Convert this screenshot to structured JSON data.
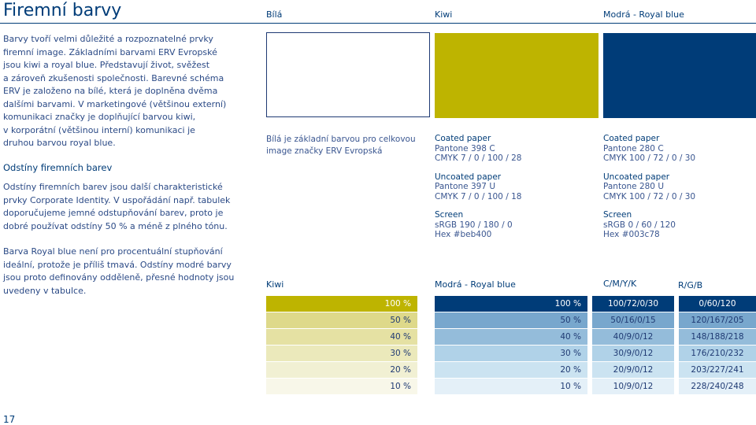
{
  "page": {
    "title": "Firemní barvy",
    "page_number": "17"
  },
  "intro": {
    "lines": [
      "Barvy tvoří velmi důležité a rozpoznatelné prvky",
      "firemní image. Základními barvami ERV Evropské",
      "jsou kiwi a royal blue. Představují život, svěžest",
      "a zároveň zkušenosti společnosti. Barevné schéma",
      "ERV je založeno na bílé, která je doplněna dvěma",
      "dalšími barvami. V marketingové (většinou externí)",
      "komunikaci značky je doplňující barvou kiwi,",
      "v korporátní (většinou interní) komunikaci je",
      "druhou barvou royal blue."
    ]
  },
  "shades_section": {
    "heading": "Odstíny firemních barev",
    "lines": [
      "Odstíny firemních barev jsou další charakteristické",
      "prvky Corporate Identity. V uspořádání např. tabulek",
      "doporučujeme jemné odstupňování barev, proto je",
      "dobré používat odstíny 50 % a méně z plného tónu."
    ],
    "note_lines": [
      "Barva Royal blue není pro procentuální stupňování",
      "ideální, protože je příliš tmavá. Odstíny modré barvy",
      "jsou proto definovány odděleně, přesné hodnoty jsou",
      "uvedeny v tabulce."
    ]
  },
  "colors": [
    {
      "name": "Bílá",
      "hex": "#ffffff",
      "desc_lines": [
        "Bílá je základní barvou pro celkovou",
        "image značky ERV Evropská"
      ]
    },
    {
      "name": "Kiwi",
      "hex": "#beb400",
      "coated_label": "Coated paper",
      "coated_pantone": "Pantone 398 C",
      "coated_cmyk": "CMYK  7 / 0 / 100 / 28",
      "uncoated_label": "Uncoated paper",
      "uncoated_pantone": "Pantone 397 U",
      "uncoated_cmyk": "CMYK  7 / 0 / 100 / 18",
      "screen_label": "Screen",
      "screen_rgb": "sRGB  190 / 180 / 0",
      "screen_hex": "Hex  #beb400"
    },
    {
      "name": "Modrá - Royal blue",
      "hex": "#003c78",
      "coated_label": "Coated paper",
      "coated_pantone": "Pantone 280 C",
      "coated_cmyk": "CMYK  100 / 72 / 0 / 30",
      "uncoated_label": "Uncoated paper",
      "uncoated_pantone": "Pantone 280 U",
      "uncoated_cmyk": "CMYK  100 / 72 / 0 / 30",
      "screen_label": "Screen",
      "screen_rgb": "sRGB  0 / 60 / 120",
      "screen_hex": "Hex  #003c78"
    }
  ],
  "kiwi_scale": {
    "label": "Kiwi",
    "rows": [
      {
        "pct": "100 %",
        "bg": "#beb400",
        "fg": "#ffffff"
      },
      {
        "pct": "50 %",
        "bg": "#ded98a",
        "fg": "#1f3a73"
      },
      {
        "pct": "40 %",
        "bg": "#e5e1a3",
        "fg": "#1f3a73"
      },
      {
        "pct": "30 %",
        "bg": "#ebe9bb",
        "fg": "#1f3a73"
      },
      {
        "pct": "20 %",
        "bg": "#f1f0d3",
        "fg": "#1f3a73"
      },
      {
        "pct": "10 %",
        "bg": "#f8f7e9",
        "fg": "#1f3a73"
      }
    ]
  },
  "blue_scale": {
    "label": "Modrá - Royal blue",
    "cmyk_header": "C/M/Y/K",
    "rgb_header": "R/G/B",
    "rows": [
      {
        "pct": "100 %",
        "cmyk": "100/72/0/30",
        "rgb": "0/60/120",
        "bg": "#003c78",
        "fg": "#ffffff"
      },
      {
        "pct": "50 %",
        "cmyk": "50/16/0/15",
        "rgb": "120/167/205",
        "bg": "#78a7cd",
        "fg": "#1f3a73"
      },
      {
        "pct": "40 %",
        "cmyk": "40/9/0/12",
        "rgb": "148/188/218",
        "bg": "#94bcda",
        "fg": "#1f3a73"
      },
      {
        "pct": "30 %",
        "cmyk": "30/9/0/12",
        "rgb": "176/210/232",
        "bg": "#b0d2e8",
        "fg": "#1f3a73"
      },
      {
        "pct": "20 %",
        "cmyk": "20/9/0/12",
        "rgb": "203/227/241",
        "bg": "#cbe3f1",
        "fg": "#1f3a73"
      },
      {
        "pct": "10 %",
        "cmyk": "10/9/0/12",
        "rgb": "228/240/248",
        "bg": "#e4f0f8",
        "fg": "#1f3a73"
      }
    ]
  }
}
